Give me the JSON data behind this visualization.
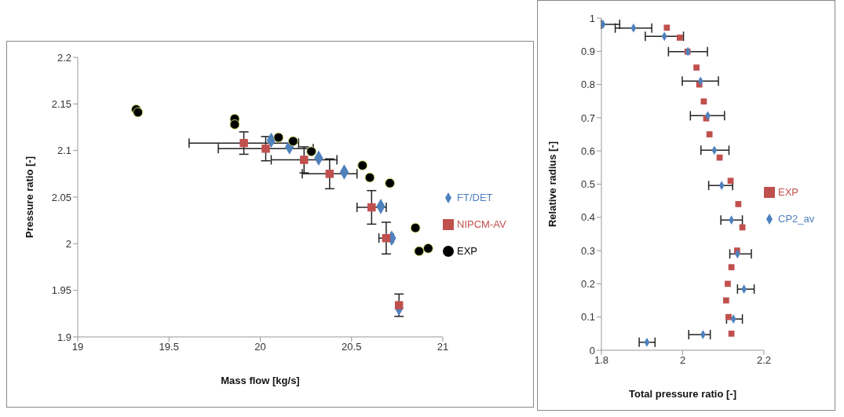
{
  "chart_data": [
    {
      "type": "scatter",
      "xlabel": "Mass flow [kg/s]",
      "ylabel": "Pressure ratio [-]",
      "xlim": [
        19,
        21
      ],
      "xticks": [
        19,
        19.5,
        20,
        20.5,
        21
      ],
      "ylim": [
        1.9,
        2.2
      ],
      "yticks": [
        1.9,
        1.95,
        2,
        2.05,
        2.1,
        2.15,
        2.2
      ],
      "grid": false,
      "legend": "right",
      "series": [
        {
          "name": "FT/DET",
          "color": "#4f81bd",
          "marker": "diamond",
          "x": [
            20.06,
            20.16,
            20.32,
            20.46,
            20.66,
            20.72,
            20.76
          ],
          "values": [
            2.111,
            2.104,
            2.092,
            2.077,
            2.04,
            2.006,
            1.931
          ]
        },
        {
          "name": "NIPCM-AV",
          "color": "#c0504d",
          "marker": "square",
          "x": [
            19.91,
            20.03,
            20.24,
            20.38,
            20.61,
            20.69,
            20.76
          ],
          "values": [
            2.108,
            2.102,
            2.09,
            2.075,
            2.039,
            2.006,
            1.934
          ],
          "errors": [
            0.012,
            0.013,
            0.014,
            0.016,
            0.018,
            0.017,
            0.012
          ],
          "xerrors": [
            0.3,
            0.26,
            0.18,
            0.15,
            0.08,
            0.04,
            null
          ]
        },
        {
          "name": "EXP",
          "color": "#000000",
          "marker": "circle",
          "x": [
            19.32,
            19.33,
            19.86,
            19.86,
            20.1,
            20.18,
            20.28,
            20.56,
            20.6,
            20.71,
            20.85,
            20.87,
            20.92
          ],
          "values": [
            2.144,
            2.141,
            2.134,
            2.128,
            2.114,
            2.11,
            2.099,
            2.084,
            2.071,
            2.065,
            2.017,
            1.992,
            1.995
          ]
        }
      ]
    },
    {
      "type": "scatter",
      "xlabel": "Total pressure ratio [-]",
      "ylabel": "Relative radius [-]",
      "xlim": [
        1.8,
        2.2
      ],
      "xticks": [
        1.8,
        2,
        2.2
      ],
      "ylim": [
        0,
        1
      ],
      "yticks": [
        0,
        0.1,
        0.2,
        0.3,
        0.4,
        0.5,
        0.6,
        0.7,
        0.8,
        0.9,
        1
      ],
      "grid": false,
      "legend": "right",
      "series": [
        {
          "name": "EXP",
          "color": "#c0504d",
          "marker": "square",
          "x": [
            1.961,
            1.993,
            2.012,
            2.034,
            2.041,
            2.052,
            2.058,
            2.066,
            2.091,
            2.118,
            2.137,
            2.147,
            2.134,
            2.12,
            2.111,
            2.107,
            2.113,
            2.12
          ],
          "values": [
            0.971,
            0.941,
            0.899,
            0.851,
            0.8,
            0.749,
            0.698,
            0.65,
            0.58,
            0.51,
            0.44,
            0.37,
            0.3,
            0.25,
            0.2,
            0.15,
            0.1,
            0.05
          ]
        },
        {
          "name": "CP2_av",
          "color": "#4f81bd",
          "marker": "diamond",
          "x": [
            1.804,
            1.879,
            1.955,
            2.013,
            2.044,
            2.062,
            2.078,
            2.096,
            2.12,
            2.135,
            2.151,
            2.125,
            2.05,
            1.912
          ],
          "values": [
            0.981,
            0.97,
            0.945,
            0.899,
            0.81,
            0.706,
            0.602,
            0.496,
            0.392,
            0.29,
            0.184,
            0.094,
            0.047,
            0.024
          ],
          "xerrors": [
            [
              1.8,
              1.845
            ],
            [
              1.834,
              1.924
            ],
            [
              1.908,
              2.002
            ],
            [
              1.965,
              2.061
            ],
            [
              1.999,
              2.088
            ],
            [
              2.019,
              2.103
            ],
            [
              2.045,
              2.114
            ],
            [
              2.064,
              2.123
            ],
            [
              2.094,
              2.147
            ],
            [
              2.116,
              2.169
            ],
            [
              2.135,
              2.176
            ],
            [
              2.108,
              2.147
            ],
            [
              2.015,
              2.068
            ],
            [
              1.893,
              1.932
            ]
          ]
        }
      ]
    }
  ]
}
